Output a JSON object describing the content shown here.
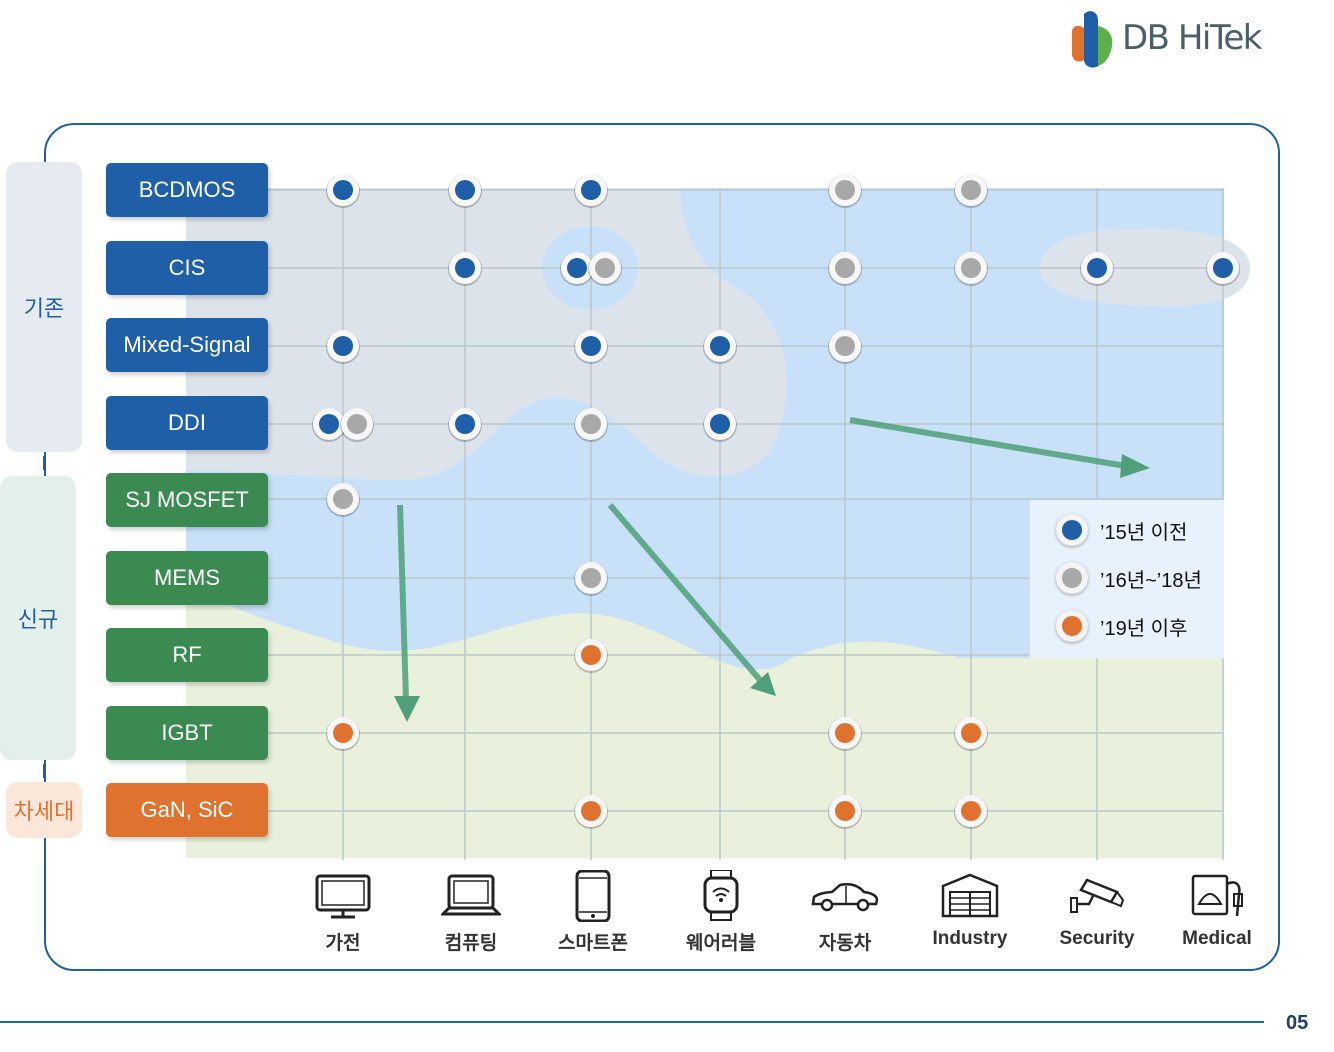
{
  "logo": {
    "text": "DB HiTek"
  },
  "categories": {
    "legacy": "기존",
    "new": "신규",
    "next": "차세대"
  },
  "technologies": [
    "BCDMOS",
    "CIS",
    "Mixed-Signal",
    "DDI",
    "SJ MOSFET",
    "MEMS",
    "RF",
    "IGBT",
    "GaN, SiC"
  ],
  "applications": [
    "가전",
    "컴퓨팅",
    "스마트폰",
    "웨어러블",
    "자동차",
    "Industry",
    "Security",
    "Medical"
  ],
  "legend": [
    {
      "label": "’15년 이전",
      "color": "#1f5fa8"
    },
    {
      "label": "’16년~’18년",
      "color": "#a8a8a8"
    },
    {
      "label": "’19년 이후",
      "color": "#e0722f"
    }
  ],
  "period_colors": {
    "pre15": "#1f5fa8",
    "16to18": "#a8a8a8",
    "post19": "#e0722f"
  },
  "matrix_markers": [
    {
      "tech": "BCDMOS",
      "app": "가전",
      "periods": [
        "pre15"
      ]
    },
    {
      "tech": "BCDMOS",
      "app": "컴퓨팅",
      "periods": [
        "pre15"
      ]
    },
    {
      "tech": "BCDMOS",
      "app": "스마트폰",
      "periods": [
        "pre15"
      ]
    },
    {
      "tech": "BCDMOS",
      "app": "자동차",
      "periods": [
        "16to18"
      ]
    },
    {
      "tech": "BCDMOS",
      "app": "Industry",
      "periods": [
        "16to18"
      ]
    },
    {
      "tech": "CIS",
      "app": "컴퓨팅",
      "periods": [
        "pre15"
      ]
    },
    {
      "tech": "CIS",
      "app": "스마트폰",
      "periods": [
        "pre15",
        "16to18"
      ]
    },
    {
      "tech": "CIS",
      "app": "자동차",
      "periods": [
        "16to18"
      ]
    },
    {
      "tech": "CIS",
      "app": "Industry",
      "periods": [
        "16to18"
      ]
    },
    {
      "tech": "CIS",
      "app": "Security",
      "periods": [
        "pre15"
      ]
    },
    {
      "tech": "CIS",
      "app": "Medical",
      "periods": [
        "pre15"
      ]
    },
    {
      "tech": "Mixed-Signal",
      "app": "가전",
      "periods": [
        "pre15"
      ]
    },
    {
      "tech": "Mixed-Signal",
      "app": "스마트폰",
      "periods": [
        "pre15"
      ]
    },
    {
      "tech": "Mixed-Signal",
      "app": "웨어러블",
      "periods": [
        "pre15"
      ]
    },
    {
      "tech": "Mixed-Signal",
      "app": "자동차",
      "periods": [
        "16to18"
      ]
    },
    {
      "tech": "DDI",
      "app": "가전",
      "periods": [
        "pre15",
        "16to18"
      ]
    },
    {
      "tech": "DDI",
      "app": "컴퓨팅",
      "periods": [
        "pre15"
      ]
    },
    {
      "tech": "DDI",
      "app": "스마트폰",
      "periods": [
        "16to18"
      ]
    },
    {
      "tech": "DDI",
      "app": "웨어러블",
      "periods": [
        "pre15"
      ]
    },
    {
      "tech": "SJ MOSFET",
      "app": "가전",
      "periods": [
        "16to18"
      ]
    },
    {
      "tech": "MEMS",
      "app": "스마트폰",
      "periods": [
        "16to18"
      ]
    },
    {
      "tech": "RF",
      "app": "스마트폰",
      "periods": [
        "post19"
      ]
    },
    {
      "tech": "IGBT",
      "app": "가전",
      "periods": [
        "post19"
      ]
    },
    {
      "tech": "IGBT",
      "app": "자동차",
      "periods": [
        "post19"
      ]
    },
    {
      "tech": "IGBT",
      "app": "Industry",
      "periods": [
        "post19"
      ]
    },
    {
      "tech": "GaN, SiC",
      "app": "스마트폰",
      "periods": [
        "post19"
      ]
    },
    {
      "tech": "GaN, SiC",
      "app": "자동차",
      "periods": [
        "post19"
      ]
    },
    {
      "tech": "GaN, SiC",
      "app": "Industry",
      "periods": [
        "post19"
      ]
    }
  ],
  "page_number": "05"
}
